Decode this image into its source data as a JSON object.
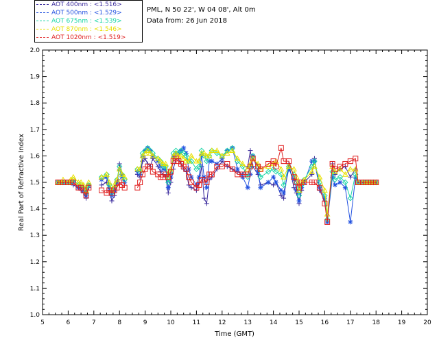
{
  "header": {
    "location": "PML, N 50 22', W 04 08', Alt 0m",
    "date": "Data from: 26 Jun 2018"
  },
  "legend": [
    {
      "label": "AOT  400nm : <1.516>",
      "color": "#3a2a9c"
    },
    {
      "label": "AOT  500nm : <1.529>",
      "color": "#2050e0"
    },
    {
      "label": "AOT  675nm : <1.539>",
      "color": "#19d6a6"
    },
    {
      "label": "AOT  870nm : <1.546>",
      "color": "#e8e000"
    },
    {
      "label": "AOT 1020nm : <1.519>",
      "color": "#e02020"
    }
  ],
  "chart_data": {
    "type": "line",
    "xlabel": "Time (GMT)",
    "ylabel": "Real Part of Refractive Index",
    "xlim": [
      5,
      20
    ],
    "ylim": [
      1.0,
      2.0
    ],
    "xticks": [
      "5",
      "6",
      "7",
      "8",
      "9",
      "10",
      "11",
      "12",
      "13",
      "14",
      "15",
      "16",
      "17",
      "18",
      "19",
      "20"
    ],
    "yticks": [
      "1.0",
      "1.1",
      "1.2",
      "1.3",
      "1.4",
      "1.5",
      "1.6",
      "1.7",
      "1.8",
      "1.9",
      "2.0"
    ],
    "grid": false,
    "series": [
      {
        "name": "AOT  400nm",
        "color": "#3a2a9c",
        "marker": "plus",
        "x": [
          5.6,
          5.7,
          5.8,
          6.0,
          6.1,
          6.2,
          6.4,
          6.5,
          6.6,
          6.7,
          6.8,
          7.3,
          7.5,
          7.6,
          7.7,
          7.8,
          7.9,
          8.0,
          8.1,
          8.2,
          8.7,
          8.8,
          8.9,
          9.0,
          9.1,
          9.2,
          9.3,
          9.5,
          9.6,
          9.7,
          9.8,
          9.9,
          10.0,
          10.1,
          10.2,
          10.3,
          10.4,
          10.5,
          10.6,
          10.7,
          10.8,
          11.0,
          11.1,
          11.2,
          11.3,
          11.4,
          11.5,
          11.6,
          11.8,
          12.0,
          12.2,
          12.4,
          12.6,
          12.8,
          13.0,
          13.1,
          13.2,
          13.4,
          13.5,
          13.8,
          14.0,
          14.1,
          14.3,
          14.4,
          14.6,
          14.8,
          14.9,
          15.0,
          15.1,
          15.2,
          15.5,
          15.6,
          15.8,
          16.0,
          16.1,
          16.3,
          16.4,
          16.6,
          16.8,
          17.0,
          17.2,
          17.3,
          17.5,
          17.6,
          17.7,
          17.8,
          17.9,
          18.0
        ],
        "y": [
          1.5,
          1.5,
          1.5,
          1.5,
          1.5,
          1.49,
          1.48,
          1.47,
          1.46,
          1.44,
          1.48,
          1.49,
          1.5,
          1.47,
          1.43,
          1.45,
          1.49,
          1.57,
          1.53,
          1.5,
          1.53,
          1.52,
          1.58,
          1.59,
          1.57,
          1.56,
          1.59,
          1.56,
          1.54,
          1.53,
          1.52,
          1.46,
          1.5,
          1.55,
          1.59,
          1.59,
          1.57,
          1.55,
          1.54,
          1.49,
          1.48,
          1.47,
          1.5,
          1.56,
          1.44,
          1.42,
          1.51,
          1.52,
          1.55,
          1.58,
          1.56,
          1.55,
          1.54,
          1.53,
          1.56,
          1.62,
          1.56,
          1.53,
          1.49,
          1.5,
          1.49,
          1.5,
          1.45,
          1.44,
          1.57,
          1.48,
          1.46,
          1.42,
          1.47,
          1.5,
          1.53,
          1.59,
          1.47,
          1.43,
          1.35,
          1.57,
          1.53,
          1.55,
          1.56,
          1.52,
          1.55,
          1.5,
          1.5,
          1.5,
          1.5,
          1.5,
          1.5,
          1.5
        ]
      },
      {
        "name": "AOT  500nm",
        "color": "#2050e0",
        "marker": "star",
        "x": [
          5.6,
          5.7,
          5.8,
          6.0,
          6.1,
          6.2,
          6.4,
          6.5,
          6.6,
          6.7,
          6.8,
          7.3,
          7.5,
          7.6,
          7.7,
          7.8,
          7.9,
          8.0,
          8.1,
          8.2,
          8.7,
          8.8,
          8.9,
          9.0,
          9.1,
          9.2,
          9.3,
          9.5,
          9.6,
          9.7,
          9.8,
          9.9,
          10.0,
          10.1,
          10.2,
          10.3,
          10.4,
          10.5,
          10.6,
          10.7,
          10.8,
          11.0,
          11.1,
          11.2,
          11.3,
          11.4,
          11.5,
          11.6,
          11.8,
          12.0,
          12.2,
          12.4,
          12.6,
          12.8,
          13.0,
          13.1,
          13.2,
          13.4,
          13.5,
          13.8,
          14.0,
          14.1,
          14.3,
          14.4,
          14.6,
          14.8,
          14.9,
          15.0,
          15.1,
          15.2,
          15.5,
          15.6,
          15.8,
          16.0,
          16.1,
          16.3,
          16.4,
          16.6,
          16.8,
          17.0,
          17.2,
          17.3,
          17.5,
          17.6,
          17.7,
          17.8,
          17.9,
          18.0
        ],
        "y": [
          1.5,
          1.5,
          1.5,
          1.5,
          1.5,
          1.5,
          1.48,
          1.48,
          1.47,
          1.45,
          1.49,
          1.51,
          1.52,
          1.48,
          1.45,
          1.47,
          1.5,
          1.55,
          1.52,
          1.5,
          1.54,
          1.53,
          1.6,
          1.62,
          1.63,
          1.62,
          1.6,
          1.58,
          1.56,
          1.55,
          1.55,
          1.48,
          1.52,
          1.6,
          1.61,
          1.61,
          1.62,
          1.63,
          1.61,
          1.55,
          1.52,
          1.49,
          1.52,
          1.6,
          1.52,
          1.48,
          1.58,
          1.58,
          1.57,
          1.59,
          1.62,
          1.63,
          1.55,
          1.52,
          1.48,
          1.53,
          1.6,
          1.54,
          1.48,
          1.5,
          1.52,
          1.5,
          1.47,
          1.46,
          1.55,
          1.51,
          1.47,
          1.43,
          1.48,
          1.5,
          1.58,
          1.58,
          1.48,
          1.44,
          1.35,
          1.52,
          1.49,
          1.5,
          1.48,
          1.35,
          1.52,
          1.5,
          1.5,
          1.5,
          1.5,
          1.5,
          1.5,
          1.5
        ]
      },
      {
        "name": "AOT  675nm",
        "color": "#19d6a6",
        "marker": "diamond",
        "x": [
          5.6,
          5.7,
          5.8,
          6.0,
          6.1,
          6.2,
          6.4,
          6.5,
          6.6,
          6.7,
          6.8,
          7.3,
          7.5,
          7.6,
          7.7,
          7.8,
          7.9,
          8.0,
          8.1,
          8.2,
          8.7,
          8.8,
          8.9,
          9.0,
          9.1,
          9.2,
          9.3,
          9.5,
          9.6,
          9.7,
          9.8,
          9.9,
          10.0,
          10.1,
          10.2,
          10.3,
          10.4,
          10.5,
          10.6,
          10.7,
          10.8,
          11.0,
          11.1,
          11.2,
          11.3,
          11.4,
          11.5,
          11.6,
          11.8,
          12.0,
          12.2,
          12.4,
          12.6,
          12.8,
          13.0,
          13.1,
          13.2,
          13.4,
          13.5,
          13.8,
          14.0,
          14.1,
          14.3,
          14.4,
          14.6,
          14.8,
          14.9,
          15.0,
          15.1,
          15.2,
          15.5,
          15.6,
          15.8,
          16.0,
          16.1,
          16.3,
          16.4,
          16.6,
          16.8,
          17.0,
          17.2,
          17.3,
          17.5,
          17.6,
          17.7,
          17.8,
          17.9,
          18.0
        ],
        "y": [
          1.5,
          1.5,
          1.5,
          1.5,
          1.5,
          1.51,
          1.49,
          1.49,
          1.48,
          1.46,
          1.49,
          1.52,
          1.53,
          1.49,
          1.46,
          1.48,
          1.51,
          1.56,
          1.53,
          1.51,
          1.55,
          1.54,
          1.61,
          1.62,
          1.63,
          1.62,
          1.61,
          1.59,
          1.58,
          1.56,
          1.56,
          1.5,
          1.54,
          1.61,
          1.62,
          1.61,
          1.62,
          1.61,
          1.6,
          1.58,
          1.58,
          1.55,
          1.56,
          1.62,
          1.6,
          1.58,
          1.6,
          1.62,
          1.61,
          1.6,
          1.62,
          1.63,
          1.58,
          1.56,
          1.52,
          1.56,
          1.6,
          1.56,
          1.52,
          1.54,
          1.55,
          1.54,
          1.53,
          1.49,
          1.56,
          1.53,
          1.5,
          1.45,
          1.49,
          1.51,
          1.56,
          1.58,
          1.5,
          1.45,
          1.36,
          1.54,
          1.51,
          1.52,
          1.5,
          1.44,
          1.53,
          1.5,
          1.5,
          1.5,
          1.5,
          1.5,
          1.5,
          1.5
        ]
      },
      {
        "name": "AOT  870nm",
        "color": "#e8e000",
        "marker": "triangle",
        "x": [
          5.6,
          5.7,
          5.8,
          6.0,
          6.1,
          6.2,
          6.4,
          6.5,
          6.6,
          6.7,
          6.8,
          7.3,
          7.5,
          7.6,
          7.7,
          7.8,
          7.9,
          8.0,
          8.1,
          8.2,
          8.7,
          8.8,
          8.9,
          9.0,
          9.1,
          9.2,
          9.3,
          9.5,
          9.6,
          9.7,
          9.8,
          9.9,
          10.0,
          10.1,
          10.2,
          10.3,
          10.4,
          10.5,
          10.6,
          10.7,
          10.8,
          11.0,
          11.1,
          11.2,
          11.3,
          11.4,
          11.5,
          11.6,
          11.8,
          12.0,
          12.2,
          12.4,
          12.6,
          12.8,
          13.0,
          13.1,
          13.2,
          13.4,
          13.5,
          13.8,
          14.0,
          14.1,
          14.3,
          14.4,
          14.6,
          14.8,
          14.9,
          15.0,
          15.1,
          15.2,
          15.5,
          15.6,
          15.8,
          16.0,
          16.1,
          16.3,
          16.4,
          16.6,
          16.8,
          17.0,
          17.2,
          17.3,
          17.5,
          17.6,
          17.7,
          17.8,
          17.9,
          18.0
        ],
        "y": [
          1.5,
          1.5,
          1.51,
          1.5,
          1.51,
          1.52,
          1.5,
          1.5,
          1.49,
          1.47,
          1.5,
          1.52,
          1.53,
          1.5,
          1.47,
          1.49,
          1.51,
          1.55,
          1.53,
          1.52,
          1.55,
          1.55,
          1.6,
          1.61,
          1.62,
          1.61,
          1.6,
          1.59,
          1.58,
          1.57,
          1.57,
          1.52,
          1.55,
          1.6,
          1.61,
          1.6,
          1.6,
          1.59,
          1.58,
          1.58,
          1.6,
          1.58,
          1.58,
          1.61,
          1.61,
          1.6,
          1.6,
          1.62,
          1.62,
          1.6,
          1.61,
          1.62,
          1.59,
          1.57,
          1.55,
          1.57,
          1.59,
          1.57,
          1.55,
          1.56,
          1.57,
          1.58,
          1.55,
          1.52,
          1.56,
          1.55,
          1.52,
          1.47,
          1.5,
          1.51,
          1.54,
          1.56,
          1.52,
          1.47,
          1.38,
          1.56,
          1.54,
          1.55,
          1.53,
          1.55,
          1.55,
          1.5,
          1.5,
          1.5,
          1.5,
          1.5,
          1.5,
          1.5
        ]
      },
      {
        "name": "AOT 1020nm",
        "color": "#e02020",
        "marker": "square",
        "x": [
          5.6,
          5.7,
          5.8,
          6.0,
          6.1,
          6.2,
          6.4,
          6.5,
          6.6,
          6.7,
          6.8,
          7.3,
          7.5,
          7.6,
          7.7,
          7.8,
          7.9,
          8.0,
          8.1,
          8.2,
          8.7,
          8.8,
          8.9,
          9.0,
          9.1,
          9.2,
          9.3,
          9.5,
          9.6,
          9.7,
          9.8,
          9.9,
          10.0,
          10.1,
          10.2,
          10.3,
          10.4,
          10.5,
          10.6,
          10.7,
          10.8,
          11.0,
          11.1,
          11.2,
          11.3,
          11.4,
          11.5,
          11.6,
          11.8,
          12.0,
          12.2,
          12.4,
          12.6,
          12.8,
          13.0,
          13.1,
          13.2,
          13.4,
          13.5,
          13.8,
          14.0,
          14.1,
          14.3,
          14.4,
          14.6,
          14.8,
          14.9,
          15.0,
          15.1,
          15.2,
          15.5,
          15.6,
          15.8,
          16.0,
          16.1,
          16.3,
          16.4,
          16.6,
          16.8,
          17.0,
          17.2,
          17.3,
          17.5,
          17.6,
          17.7,
          17.8,
          17.9,
          18.0
        ],
        "y": [
          1.5,
          1.5,
          1.5,
          1.5,
          1.5,
          1.5,
          1.48,
          1.48,
          1.47,
          1.45,
          1.48,
          1.47,
          1.46,
          1.47,
          1.46,
          1.47,
          1.48,
          1.5,
          1.49,
          1.48,
          1.48,
          1.5,
          1.53,
          1.55,
          1.56,
          1.56,
          1.54,
          1.53,
          1.52,
          1.52,
          1.53,
          1.52,
          1.54,
          1.58,
          1.59,
          1.58,
          1.57,
          1.56,
          1.55,
          1.52,
          1.5,
          1.48,
          1.49,
          1.51,
          1.51,
          1.5,
          1.53,
          1.53,
          1.56,
          1.56,
          1.57,
          1.55,
          1.53,
          1.53,
          1.53,
          1.56,
          1.59,
          1.56,
          1.55,
          1.57,
          1.58,
          1.56,
          1.63,
          1.58,
          1.58,
          1.52,
          1.5,
          1.48,
          1.5,
          1.5,
          1.5,
          1.5,
          1.48,
          1.42,
          1.35,
          1.57,
          1.55,
          1.56,
          1.57,
          1.58,
          1.59,
          1.5,
          1.5,
          1.5,
          1.5,
          1.5,
          1.5,
          1.5
        ]
      }
    ]
  }
}
